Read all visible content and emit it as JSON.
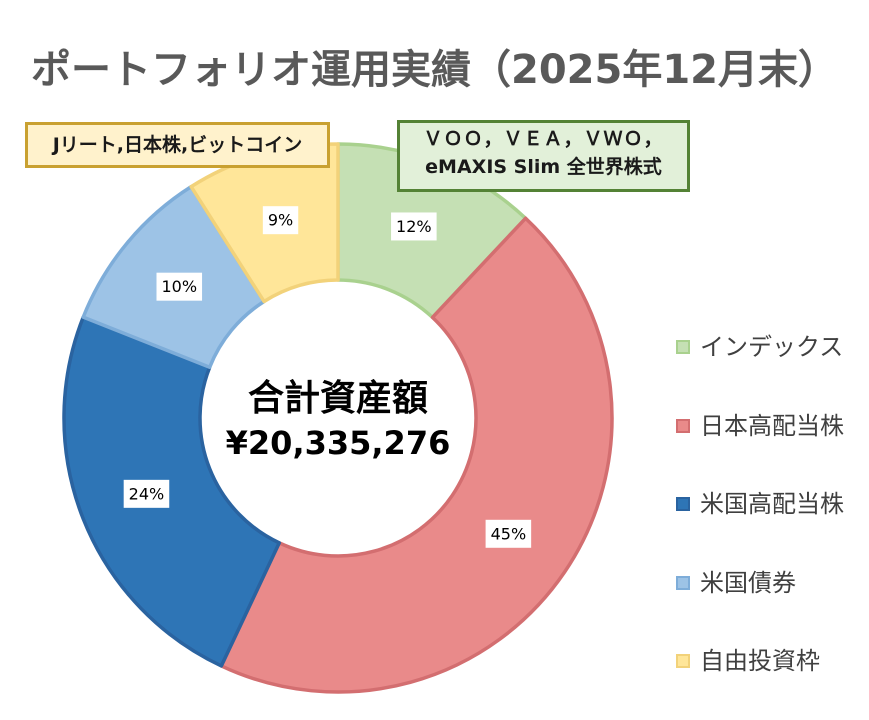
{
  "chart_data": {
    "type": "pie",
    "donut": true,
    "title": "ポートフォリオ運用実績（2025年12月末）",
    "categories": [
      "インデックス",
      "日本高配当株",
      "米国高配当株",
      "米国債券",
      "自由投資枠"
    ],
    "values": [
      12,
      45,
      24,
      10,
      9
    ],
    "data_labels": [
      "12%",
      "45%",
      "24%",
      "10%",
      "9%"
    ],
    "colors": [
      "#C5E0B4",
      "#E98A8A",
      "#2E75B6",
      "#9DC3E6",
      "#FFE699"
    ],
    "border_colors": [
      "#A9D18E",
      "#D36E70",
      "#2A63A0",
      "#7EADD9",
      "#F2D27A"
    ],
    "center_label": {
      "title": "合計資産額",
      "total": "¥20,335,276"
    },
    "legend_position": "right"
  },
  "callouts": [
    {
      "text": "Jリート,日本株,ビットコイン",
      "border_color": "#C9A131",
      "fill_color": "#FFF2CC"
    },
    {
      "lines": [
        "ＶＯＯ，ＶＥＡ，ＶＷＯ，",
        "eMAXIS Slim 全世界株式"
      ],
      "border_color": "#548235",
      "fill_color": "#E2F0D9"
    }
  ]
}
